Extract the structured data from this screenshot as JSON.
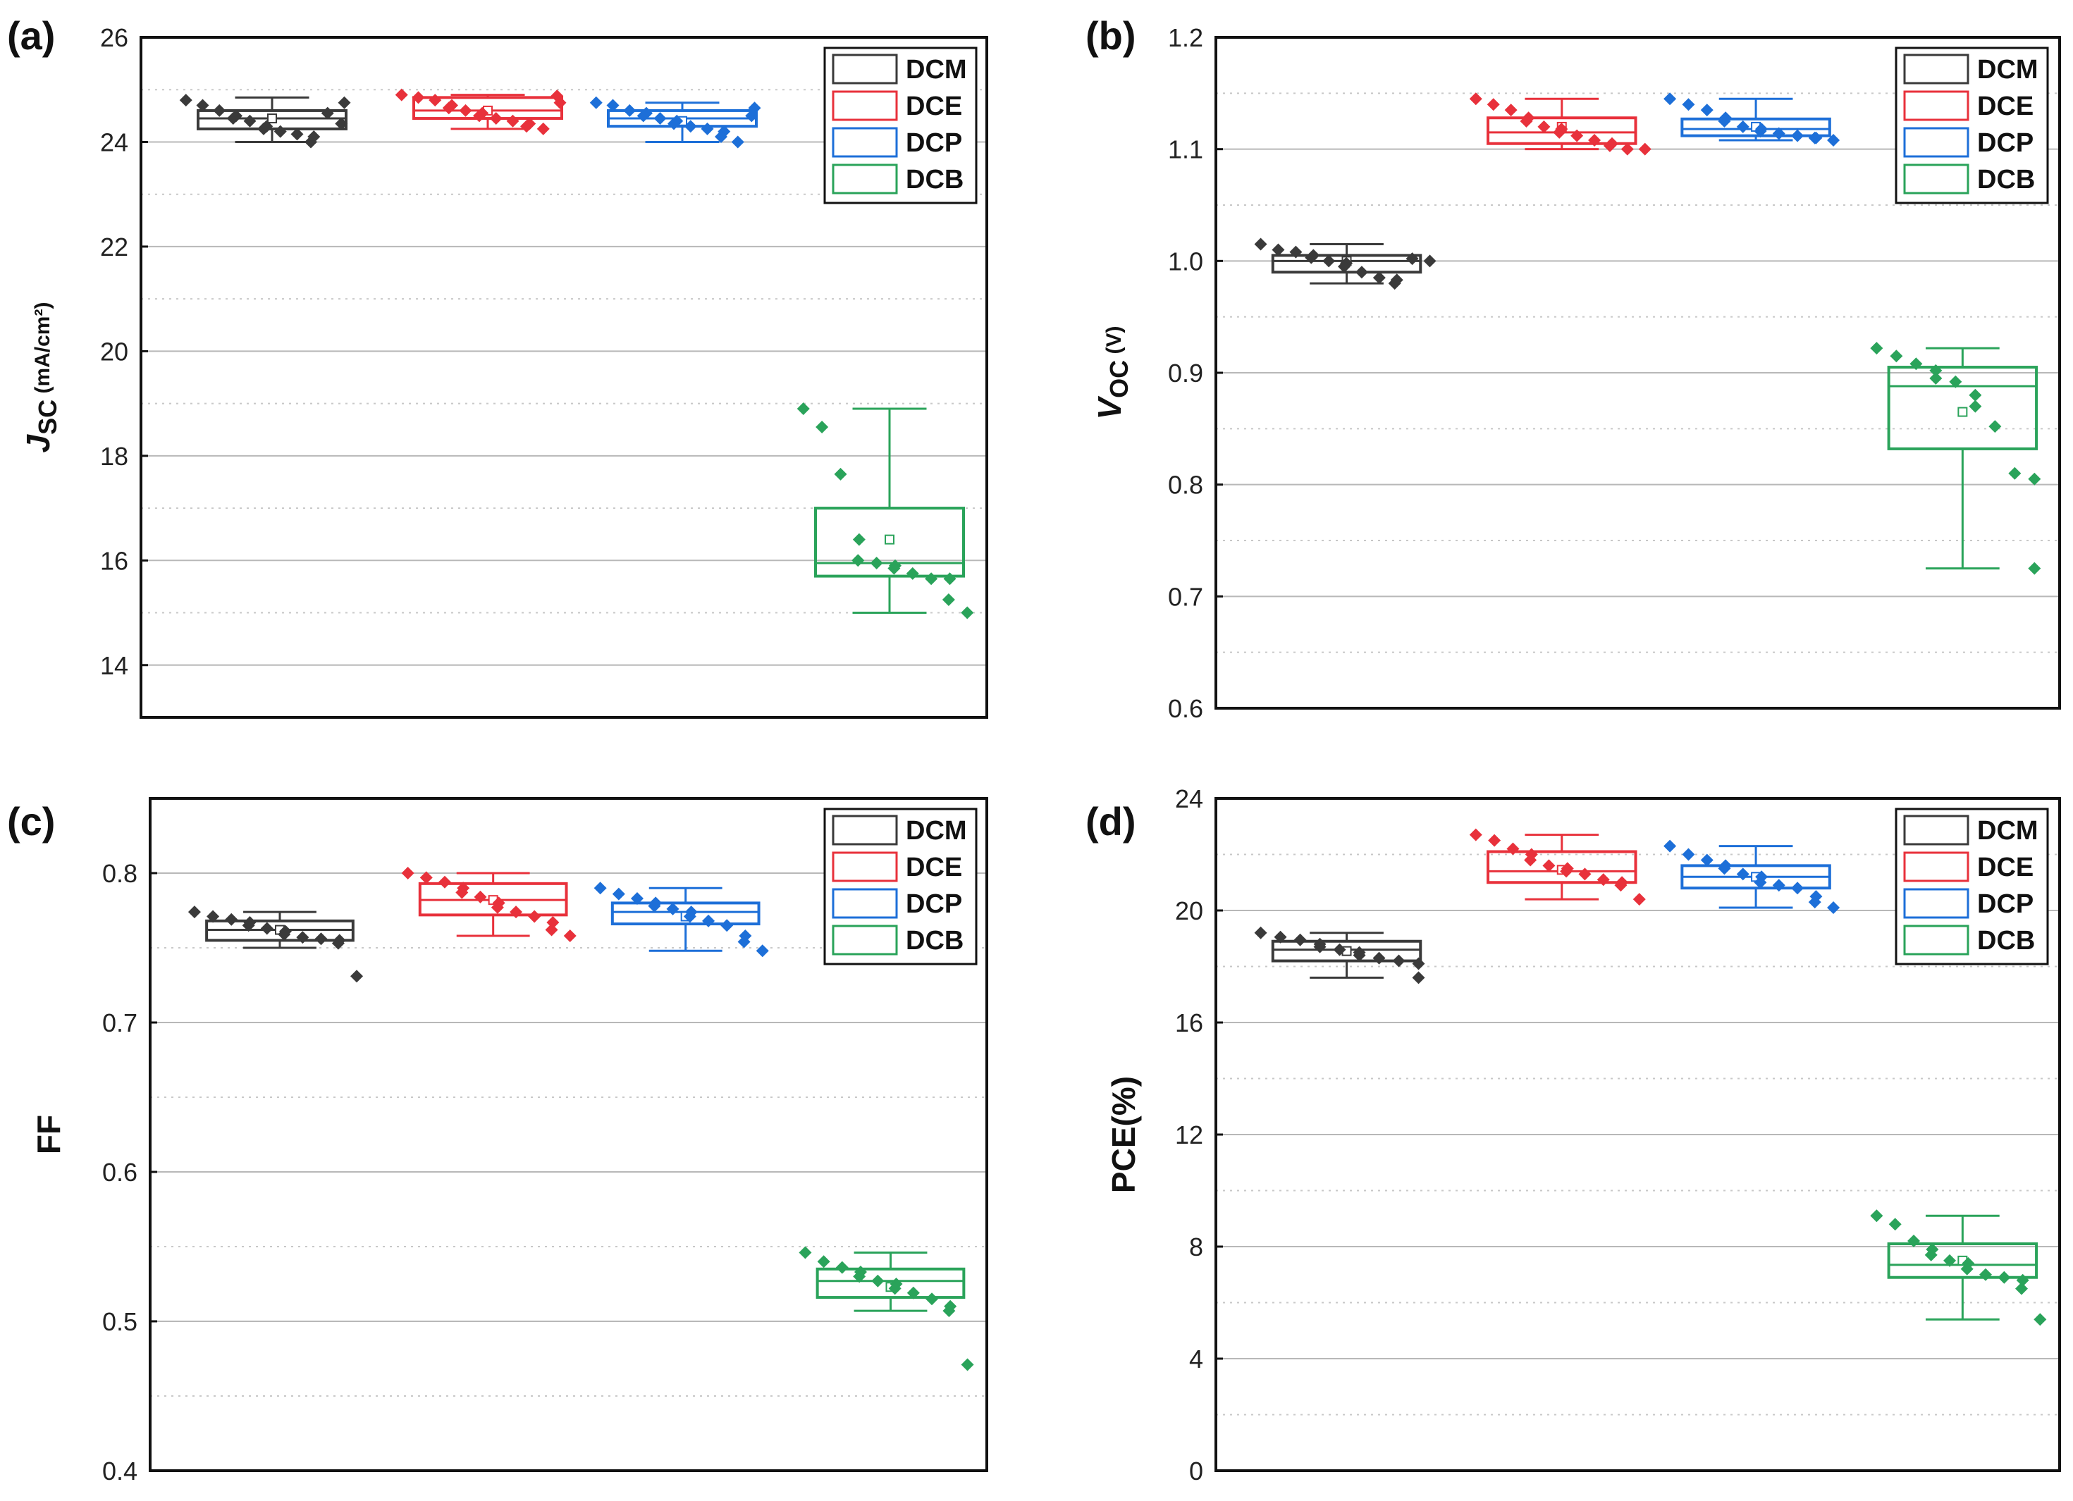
{
  "colors": {
    "DCM": "#3a3a3a",
    "DCE": "#e8313b",
    "DCP": "#1d6fd8",
    "DCB": "#2aa35a"
  },
  "chart_data": [
    {
      "type": "box",
      "panel": "(a)",
      "ylabel_main": "J",
      "ylabel_sub": "SC",
      "ylabel_unit": "(mA/cm²)",
      "ylim": [
        13,
        26
      ],
      "yticks": [
        14,
        16,
        18,
        20,
        22,
        24,
        26
      ],
      "grid": true,
      "legend": "top-right",
      "categories": [
        "DCM",
        "DCE",
        "DCP",
        "DCB"
      ],
      "series": [
        {
          "name": "DCM",
          "q1": 24.25,
          "median": 24.45,
          "q3": 24.6,
          "mean": 24.45,
          "whisker_low": 24.0,
          "whisker_high": 24.85,
          "points": [
            24.8,
            24.7,
            24.6,
            24.5,
            24.45,
            24.4,
            24.3,
            24.25,
            24.2,
            24.15,
            24.1,
            24.0,
            24.55,
            24.75,
            24.35
          ]
        },
        {
          "name": "DCE",
          "q1": 24.45,
          "median": 24.6,
          "q3": 24.85,
          "mean": 24.6,
          "whisker_low": 24.25,
          "whisker_high": 24.9,
          "points": [
            24.9,
            24.85,
            24.8,
            24.7,
            24.65,
            24.6,
            24.55,
            24.5,
            24.45,
            24.4,
            24.35,
            24.3,
            24.25,
            24.75,
            24.88
          ]
        },
        {
          "name": "DCP",
          "q1": 24.3,
          "median": 24.45,
          "q3": 24.6,
          "mean": 24.4,
          "whisker_low": 24.0,
          "whisker_high": 24.75,
          "points": [
            24.75,
            24.7,
            24.6,
            24.55,
            24.5,
            24.45,
            24.4,
            24.35,
            24.3,
            24.25,
            24.2,
            24.1,
            24.0,
            24.65,
            24.5
          ]
        },
        {
          "name": "DCB",
          "q1": 15.7,
          "median": 15.95,
          "q3": 17.0,
          "mean": 16.4,
          "whisker_low": 15.0,
          "whisker_high": 18.9,
          "points": [
            18.9,
            18.55,
            17.65,
            16.4,
            16.0,
            15.95,
            15.9,
            15.85,
            15.75,
            15.65,
            15.65,
            15.25,
            15.0
          ]
        }
      ]
    },
    {
      "type": "box",
      "panel": "(b)",
      "ylabel_main": "V",
      "ylabel_sub": "OC",
      "ylabel_unit": "(V)",
      "ylim": [
        0.6,
        1.2
      ],
      "yticks": [
        0.6,
        0.7,
        0.8,
        0.9,
        1.0,
        1.1,
        1.2
      ],
      "grid": true,
      "legend": "top-right",
      "categories": [
        "DCM",
        "DCE",
        "DCP",
        "DCB"
      ],
      "series": [
        {
          "name": "DCM",
          "q1": 0.99,
          "median": 1.0,
          "q3": 1.005,
          "mean": 1.0,
          "whisker_low": 0.98,
          "whisker_high": 1.015,
          "points": [
            1.015,
            1.01,
            1.008,
            1.005,
            1.003,
            1.0,
            0.998,
            0.995,
            0.99,
            0.985,
            0.983,
            0.98,
            1.002,
            1.0
          ]
        },
        {
          "name": "DCE",
          "q1": 1.105,
          "median": 1.115,
          "q3": 1.128,
          "mean": 1.12,
          "whisker_low": 1.1,
          "whisker_high": 1.145,
          "points": [
            1.145,
            1.14,
            1.135,
            1.128,
            1.125,
            1.12,
            1.118,
            1.115,
            1.112,
            1.108,
            1.105,
            1.103,
            1.1,
            1.1
          ]
        },
        {
          "name": "DCP",
          "q1": 1.112,
          "median": 1.118,
          "q3": 1.127,
          "mean": 1.12,
          "whisker_low": 1.108,
          "whisker_high": 1.145,
          "points": [
            1.145,
            1.14,
            1.135,
            1.128,
            1.125,
            1.12,
            1.118,
            1.116,
            1.114,
            1.112,
            1.11,
            1.11,
            1.108
          ]
        },
        {
          "name": "DCB",
          "q1": 0.832,
          "median": 0.888,
          "q3": 0.905,
          "mean": 0.865,
          "whisker_low": 0.725,
          "whisker_high": 0.922,
          "points": [
            0.922,
            0.915,
            0.908,
            0.902,
            0.895,
            0.892,
            0.88,
            0.87,
            0.852,
            0.81,
            0.805,
            0.725
          ]
        }
      ]
    },
    {
      "type": "box",
      "panel": "(c)",
      "ylabel_main": "FF",
      "ylabel_sub": "",
      "ylabel_unit": "",
      "ylim": [
        0.4,
        0.85
      ],
      "yticks": [
        0.4,
        0.5,
        0.6,
        0.7,
        0.8
      ],
      "grid": true,
      "legend": "top-right",
      "categories": [
        "DCM",
        "DCE",
        "DCP",
        "DCB"
      ],
      "series": [
        {
          "name": "DCM",
          "q1": 0.755,
          "median": 0.762,
          "q3": 0.768,
          "mean": 0.762,
          "whisker_low": 0.75,
          "whisker_high": 0.774,
          "points": [
            0.774,
            0.771,
            0.769,
            0.767,
            0.765,
            0.763,
            0.761,
            0.759,
            0.757,
            0.756,
            0.755,
            0.753,
            0.731
          ]
        },
        {
          "name": "DCE",
          "q1": 0.772,
          "median": 0.782,
          "q3": 0.793,
          "mean": 0.782,
          "whisker_low": 0.758,
          "whisker_high": 0.8,
          "points": [
            0.8,
            0.797,
            0.794,
            0.79,
            0.787,
            0.784,
            0.78,
            0.777,
            0.774,
            0.771,
            0.767,
            0.762,
            0.758
          ]
        },
        {
          "name": "DCP",
          "q1": 0.766,
          "median": 0.774,
          "q3": 0.78,
          "mean": 0.771,
          "whisker_low": 0.748,
          "whisker_high": 0.79,
          "points": [
            0.79,
            0.786,
            0.783,
            0.78,
            0.778,
            0.776,
            0.774,
            0.771,
            0.768,
            0.765,
            0.758,
            0.754,
            0.748
          ]
        },
        {
          "name": "DCB",
          "q1": 0.516,
          "median": 0.527,
          "q3": 0.535,
          "mean": 0.523,
          "whisker_low": 0.507,
          "whisker_high": 0.546,
          "points": [
            0.546,
            0.54,
            0.536,
            0.533,
            0.53,
            0.527,
            0.525,
            0.522,
            0.519,
            0.515,
            0.51,
            0.507,
            0.471
          ]
        }
      ]
    },
    {
      "type": "box",
      "panel": "(d)",
      "ylabel_main": "PCE(%)",
      "ylabel_sub": "",
      "ylabel_unit": "",
      "ylim": [
        0,
        24
      ],
      "yticks": [
        0,
        4,
        8,
        12,
        16,
        20,
        24
      ],
      "grid": true,
      "legend": "top-right",
      "categories": [
        "DCM",
        "DCE",
        "DCP",
        "DCB"
      ],
      "series": [
        {
          "name": "DCM",
          "q1": 18.2,
          "median": 18.6,
          "q3": 18.9,
          "mean": 18.55,
          "whisker_low": 17.6,
          "whisker_high": 19.2,
          "points": [
            19.2,
            19.05,
            18.95,
            18.8,
            18.7,
            18.6,
            18.5,
            18.4,
            18.3,
            18.2,
            18.1,
            17.6
          ]
        },
        {
          "name": "DCE",
          "q1": 21.0,
          "median": 21.4,
          "q3": 22.1,
          "mean": 21.45,
          "whisker_low": 20.4,
          "whisker_high": 22.7,
          "points": [
            22.7,
            22.5,
            22.2,
            22.0,
            21.8,
            21.6,
            21.5,
            21.4,
            21.3,
            21.1,
            21.0,
            20.9,
            20.4
          ]
        },
        {
          "name": "DCP",
          "q1": 20.8,
          "median": 21.2,
          "q3": 21.6,
          "mean": 21.2,
          "whisker_low": 20.1,
          "whisker_high": 22.3,
          "points": [
            22.3,
            22.0,
            21.8,
            21.6,
            21.5,
            21.3,
            21.2,
            21.0,
            20.9,
            20.8,
            20.5,
            20.3,
            20.1
          ]
        },
        {
          "name": "DCB",
          "q1": 6.9,
          "median": 7.35,
          "q3": 8.1,
          "mean": 7.5,
          "whisker_low": 5.4,
          "whisker_high": 9.1,
          "points": [
            9.1,
            8.8,
            8.2,
            7.9,
            7.7,
            7.5,
            7.4,
            7.2,
            7.0,
            6.9,
            6.8,
            6.5,
            5.4
          ]
        }
      ]
    }
  ]
}
